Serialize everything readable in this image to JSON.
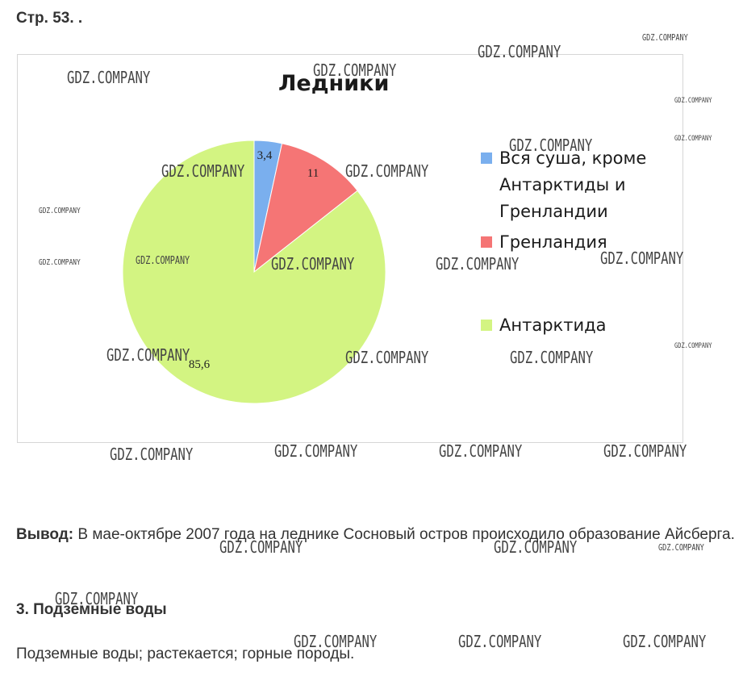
{
  "page": {
    "heading": "Стр. 53. .",
    "conclusion_label": "Вывод:",
    "conclusion_text": "В мае-октябре 2007 года на леднике Сосновый остров происходило образование Айсберга.",
    "section_heading": "3. Подземные воды",
    "answer_text": "Подземные воды; растекается; горные породы."
  },
  "watermark_text": "GDZ.COMPANY",
  "chart_data": {
    "type": "pie",
    "title": "Ледники",
    "categories": [
      "Вся суша, кроме Антарктиды и Гренландии",
      "Гренландия",
      "Антарктида"
    ],
    "values": [
      3.4,
      11,
      85.6
    ],
    "data_labels": [
      "3,4",
      "11",
      "85,6"
    ],
    "colors": [
      "#7aafee",
      "#f57575",
      "#d3f482"
    ],
    "legend_position": "right",
    "legend": [
      {
        "label": "Вся суша, кроме Антарктиды и Гренландии",
        "color": "#7aafee"
      },
      {
        "label": "Гренландия",
        "color": "#f57575"
      },
      {
        "label": "Антарктида",
        "color": "#d3f482"
      }
    ]
  }
}
